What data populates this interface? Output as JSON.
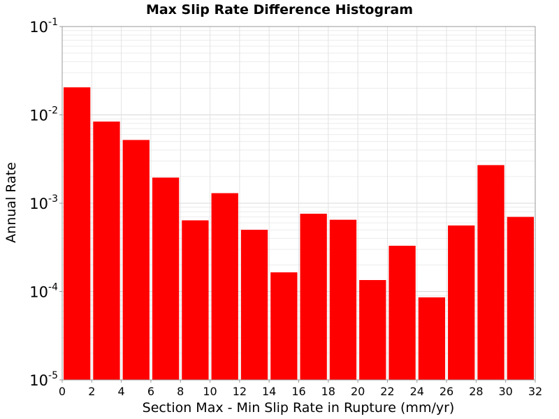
{
  "chart_data": {
    "type": "bar",
    "title": "Max Slip Rate Difference Histogram",
    "xlabel": "Section Max - Min Slip Rate in Rupture (mm/yr)",
    "ylabel": "Annual Rate",
    "y_scale": "log",
    "xlim": [
      0,
      32
    ],
    "ylim": [
      1e-05,
      0.1
    ],
    "grid": true,
    "bar_color": "#ff0000",
    "x_ticks": [
      "0",
      "2",
      "4",
      "6",
      "8",
      "10",
      "12",
      "14",
      "16",
      "18",
      "20",
      "22",
      "24",
      "26",
      "28",
      "30",
      "32"
    ],
    "y_ticks": [
      {
        "base": "10",
        "exp": "-1"
      },
      {
        "base": "10",
        "exp": "-2"
      },
      {
        "base": "10",
        "exp": "-3"
      },
      {
        "base": "10",
        "exp": "-4"
      },
      {
        "base": "10",
        "exp": "-5"
      }
    ],
    "bin_width": 2,
    "x": [
      1,
      3,
      5,
      7,
      9,
      11,
      13,
      15,
      17,
      19,
      21,
      23,
      25,
      27,
      29,
      31
    ],
    "values": [
      0.0205,
      0.0084,
      0.0052,
      0.00195,
      0.00064,
      0.0013,
      0.0005,
      0.000165,
      0.00076,
      0.00065,
      0.000135,
      0.00033,
      8.6e-05,
      0.00056,
      0.0027,
      0.0007
    ]
  }
}
